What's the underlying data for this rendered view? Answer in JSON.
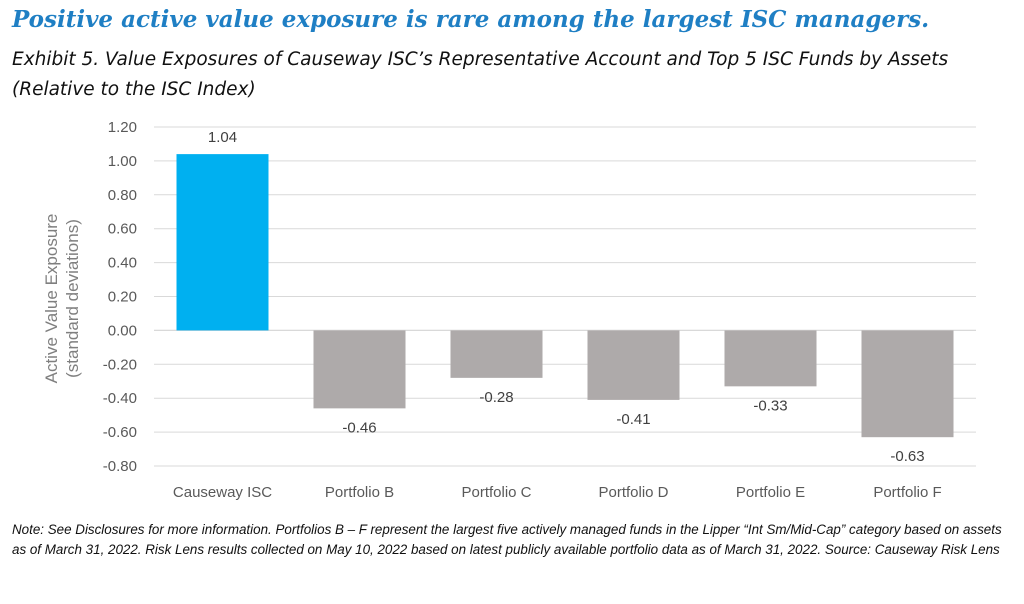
{
  "headline": "Positive active value exposure is rare among the largest ISC managers.",
  "subtitle": "Exhibit 5. Value Exposures of Causeway ISC’s Representative Account and Top 5 ISC Funds by Assets (Relative to the ISC Index)",
  "note": "Note: See Disclosures for more information.  Portfolios B – F represent the largest five actively managed funds in the Lipper “Int Sm/Mid-Cap” category based on assets as of March 31, 2022.  Risk Lens results collected on May 10, 2022 based on latest publicly available portfolio data as of March 31, 2022.  Source: Causeway Risk Lens",
  "chart_data": {
    "type": "bar",
    "categories": [
      "Causeway ISC",
      "Portfolio B",
      "Portfolio C",
      "Portfolio D",
      "Portfolio E",
      "Portfolio F"
    ],
    "values": [
      1.04,
      -0.46,
      -0.28,
      -0.41,
      -0.33,
      -0.63
    ],
    "data_labels": [
      "1.04",
      "-0.46",
      "-0.28",
      "-0.41",
      "-0.33",
      "-0.63"
    ],
    "ylabel_lines": [
      "Active Value Exposure",
      "(standard deviations)"
    ],
    "ylim": [
      -0.8,
      1.2
    ],
    "yticks": [
      1.2,
      1.0,
      0.8,
      0.6,
      0.4,
      0.2,
      0.0,
      -0.2,
      -0.4,
      -0.6,
      -0.8
    ],
    "ytick_labels": [
      "1.20",
      "1.00",
      "0.80",
      "0.60",
      "0.40",
      "0.20",
      "0.00",
      "-0.20",
      "-0.40",
      "-0.60",
      "-0.80"
    ],
    "grid": true,
    "legend": "none",
    "colors": {
      "highlight": "#00b0f0",
      "others": "#aeaaaa",
      "grid": "#d9d9d9",
      "baseline": "#d9d9d9"
    }
  }
}
